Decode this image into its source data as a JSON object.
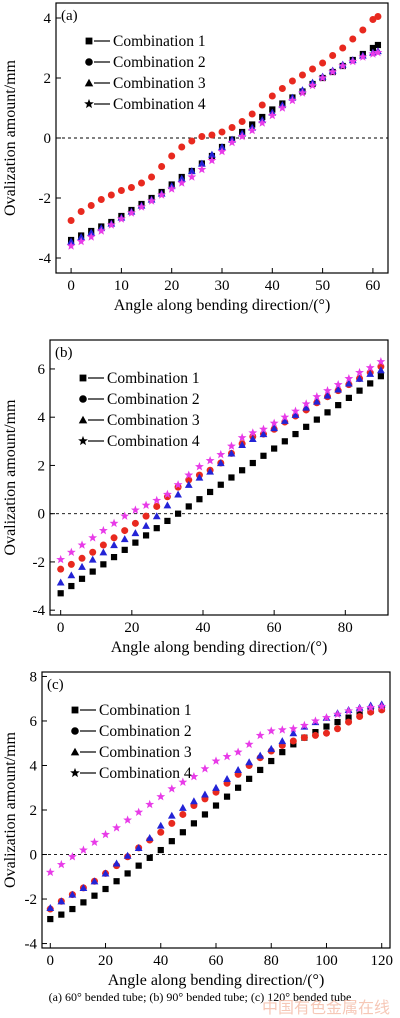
{
  "colors": {
    "combination_1": "#000000",
    "combination_2": "#e8291f",
    "combination_3": "#2323d6",
    "combination_4": "#e83be8"
  },
  "caption": "(a) 60° bended tube; (b) 90° bended tube; (c) 120° bended tube",
  "watermark": "中国有色金属在线",
  "chart_data": [
    {
      "type": "scatter",
      "panel_label": "(a)",
      "xlabel": "Angle along bending direction/(°)",
      "ylabel": "Ovalization amount/mm",
      "xlim": [
        -3,
        63
      ],
      "ylim": [
        -4.5,
        4.5
      ],
      "xticks": [
        0,
        10,
        20,
        30,
        40,
        50,
        60
      ],
      "yticks": [
        -4,
        -2,
        0,
        2,
        4
      ],
      "zero_line": true,
      "legend_position": "top-left",
      "x": [
        0,
        2,
        4,
        6,
        8,
        10,
        12,
        14,
        16,
        18,
        20,
        22,
        24,
        26,
        28,
        30,
        32,
        34,
        36,
        38,
        40,
        42,
        44,
        46,
        48,
        50,
        52,
        54,
        56,
        58,
        60,
        61
      ],
      "series": [
        {
          "name": "Combination 1",
          "marker": "square",
          "values": [
            -3.4,
            -3.25,
            -3.1,
            -2.95,
            -2.8,
            -2.6,
            -2.4,
            -2.2,
            -2.0,
            -1.8,
            -1.55,
            -1.3,
            -1.1,
            -0.85,
            -0.6,
            -0.3,
            -0.05,
            0.2,
            0.45,
            0.7,
            0.95,
            1.15,
            1.35,
            1.55,
            1.8,
            2.0,
            2.2,
            2.4,
            2.6,
            2.8,
            3.0,
            3.1
          ]
        },
        {
          "name": "Combination 2",
          "marker": "circle",
          "values": [
            -2.75,
            -2.45,
            -2.25,
            -2.05,
            -1.9,
            -1.75,
            -1.65,
            -1.5,
            -1.3,
            -0.95,
            -0.6,
            -0.3,
            -0.1,
            0.05,
            0.1,
            0.2,
            0.35,
            0.55,
            0.8,
            1.1,
            1.4,
            1.65,
            1.9,
            2.1,
            2.3,
            2.5,
            2.75,
            3.0,
            3.3,
            3.6,
            3.95,
            4.05
          ]
        },
        {
          "name": "Combination 3",
          "marker": "triangle",
          "values": [
            -3.45,
            -3.3,
            -3.15,
            -3.0,
            -2.85,
            -2.65,
            -2.45,
            -2.25,
            -2.05,
            -1.85,
            -1.6,
            -1.35,
            -1.1,
            -0.85,
            -0.55,
            -0.3,
            -0.05,
            0.15,
            0.35,
            0.6,
            0.85,
            1.1,
            1.35,
            1.6,
            1.85,
            2.05,
            2.25,
            2.45,
            2.6,
            2.75,
            2.85,
            2.9
          ]
        },
        {
          "name": "Combination 4",
          "marker": "star",
          "values": [
            -3.6,
            -3.45,
            -3.3,
            -3.1,
            -2.9,
            -2.7,
            -2.5,
            -2.3,
            -2.1,
            -1.9,
            -1.7,
            -1.5,
            -1.3,
            -1.05,
            -0.75,
            -0.45,
            -0.15,
            0.05,
            0.25,
            0.5,
            0.75,
            1.0,
            1.25,
            1.5,
            1.75,
            2.0,
            2.2,
            2.4,
            2.55,
            2.7,
            2.8,
            2.85
          ]
        }
      ]
    },
    {
      "type": "scatter",
      "panel_label": "(b)",
      "xlabel": "Angle along bending direction/(°)",
      "ylabel": "Ovalization amount/mm",
      "xlim": [
        -3,
        92
      ],
      "ylim": [
        -4.2,
        7.2
      ],
      "xticks": [
        0,
        20,
        40,
        60,
        80
      ],
      "yticks": [
        -4,
        -2,
        0,
        2,
        4,
        6
      ],
      "zero_line": true,
      "legend_position": "top-left",
      "x": [
        0,
        3,
        6,
        9,
        12,
        15,
        18,
        21,
        24,
        27,
        30,
        33,
        36,
        39,
        42,
        45,
        48,
        51,
        54,
        57,
        60,
        63,
        66,
        69,
        72,
        75,
        78,
        81,
        84,
        87,
        90
      ],
      "series": [
        {
          "name": "Combination 1",
          "marker": "square",
          "values": [
            -3.3,
            -3.0,
            -2.7,
            -2.4,
            -2.1,
            -1.8,
            -1.5,
            -1.2,
            -0.9,
            -0.6,
            -0.3,
            0.0,
            0.3,
            0.6,
            0.9,
            1.2,
            1.5,
            1.8,
            2.1,
            2.4,
            2.7,
            3.0,
            3.3,
            3.6,
            3.9,
            4.2,
            4.5,
            4.8,
            5.1,
            5.4,
            5.7
          ]
        },
        {
          "name": "Combination 2",
          "marker": "circle",
          "values": [
            -2.3,
            -2.1,
            -1.85,
            -1.6,
            -1.3,
            -1.0,
            -0.7,
            -0.4,
            -0.1,
            0.3,
            0.7,
            1.1,
            1.4,
            1.6,
            1.8,
            2.1,
            2.5,
            2.9,
            3.2,
            3.3,
            3.5,
            3.8,
            4.05,
            4.3,
            4.6,
            4.85,
            5.1,
            5.35,
            5.6,
            5.85,
            6.1
          ]
        },
        {
          "name": "Combination 3",
          "marker": "triangle",
          "values": [
            -2.85,
            -2.55,
            -2.2,
            -1.9,
            -1.6,
            -1.3,
            -1.05,
            -0.8,
            -0.5,
            -0.1,
            0.35,
            0.8,
            1.2,
            1.5,
            1.75,
            2.1,
            2.5,
            2.85,
            3.1,
            3.3,
            3.55,
            3.85,
            4.1,
            4.4,
            4.65,
            4.9,
            5.15,
            5.4,
            5.6,
            5.8,
            5.95
          ]
        },
        {
          "name": "Combination 4",
          "marker": "star",
          "values": [
            -1.9,
            -1.6,
            -1.3,
            -1.0,
            -0.7,
            -0.4,
            -0.1,
            0.15,
            0.35,
            0.55,
            0.8,
            1.2,
            1.6,
            1.95,
            2.2,
            2.45,
            2.8,
            3.15,
            3.35,
            3.5,
            3.75,
            4.0,
            4.25,
            4.55,
            4.85,
            5.1,
            5.35,
            5.6,
            5.85,
            6.05,
            6.3
          ]
        }
      ]
    },
    {
      "type": "scatter",
      "panel_label": "(c)",
      "xlabel": "Angle along bending direction/(°)",
      "ylabel": "Ovalization amount/mm",
      "xlim": [
        -3,
        123
      ],
      "ylim": [
        -4.2,
        8.2
      ],
      "xticks": [
        0,
        20,
        40,
        60,
        80,
        100,
        120
      ],
      "yticks": [
        -4,
        -2,
        0,
        2,
        4,
        6,
        8
      ],
      "zero_line": true,
      "legend_position": "top-left",
      "x": [
        0,
        4,
        8,
        12,
        16,
        20,
        24,
        28,
        32,
        36,
        40,
        44,
        48,
        52,
        56,
        60,
        64,
        68,
        72,
        76,
        80,
        84,
        88,
        92,
        96,
        100,
        104,
        108,
        112,
        116,
        120
      ],
      "series": [
        {
          "name": "Combination 1",
          "marker": "square",
          "values": [
            -2.9,
            -2.7,
            -2.45,
            -2.15,
            -1.85,
            -1.55,
            -1.2,
            -0.85,
            -0.5,
            -0.15,
            0.2,
            0.6,
            1.0,
            1.4,
            1.8,
            2.2,
            2.6,
            3.0,
            3.4,
            3.8,
            4.2,
            4.6,
            4.95,
            5.25,
            5.5,
            5.75,
            5.95,
            6.15,
            6.3,
            6.45,
            6.55
          ]
        },
        {
          "name": "Combination 2",
          "marker": "circle",
          "values": [
            -2.45,
            -2.1,
            -1.8,
            -1.5,
            -1.2,
            -0.85,
            -0.5,
            -0.1,
            0.3,
            0.65,
            1.0,
            1.4,
            1.8,
            2.2,
            2.5,
            2.8,
            3.2,
            3.6,
            4.0,
            4.35,
            4.65,
            4.9,
            5.1,
            5.25,
            5.35,
            5.45,
            5.65,
            5.95,
            6.2,
            6.4,
            6.5
          ]
        },
        {
          "name": "Combination 3",
          "marker": "triangle",
          "values": [
            -2.4,
            -2.1,
            -1.8,
            -1.5,
            -1.2,
            -0.85,
            -0.4,
            -0.05,
            0.3,
            0.75,
            1.3,
            1.75,
            2.1,
            2.4,
            2.7,
            3.0,
            3.4,
            3.8,
            4.15,
            4.45,
            4.75,
            5.1,
            5.45,
            5.75,
            5.95,
            6.15,
            6.35,
            6.5,
            6.6,
            6.7,
            6.75
          ]
        },
        {
          "name": "Combination 4",
          "marker": "star",
          "values": [
            -0.8,
            -0.45,
            -0.1,
            0.2,
            0.55,
            0.9,
            1.2,
            1.55,
            1.9,
            2.25,
            2.6,
            2.95,
            3.25,
            3.5,
            3.85,
            4.2,
            4.4,
            4.6,
            4.95,
            5.35,
            5.55,
            5.6,
            5.65,
            5.8,
            6.0,
            6.15,
            6.3,
            6.45,
            6.55,
            6.6,
            6.65
          ]
        }
      ]
    }
  ]
}
